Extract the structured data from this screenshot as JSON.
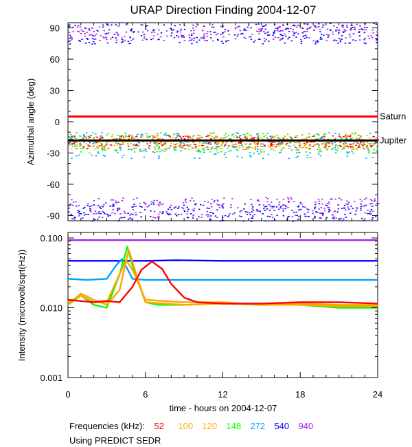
{
  "chart_data": [
    {
      "type": "scatter",
      "title": "URAP Direction Finding  2004-12-07",
      "xlabel": "",
      "ylabel": "Azimuthal angle (deg)",
      "xlim": [
        0,
        24
      ],
      "ylim": [
        -95,
        95
      ],
      "yticks": [
        "90",
        "60",
        "30",
        "0",
        "-30",
        "-60",
        "-90"
      ],
      "grid": false,
      "reference_lines": [
        {
          "label": "Saturn",
          "y": 5,
          "color": "#ff0000"
        },
        {
          "label": "Jupiter",
          "y": -18,
          "color": "#000000"
        }
      ],
      "clusters": [
        {
          "frequency": "540",
          "color": "#0000ff",
          "x_range": [
            0,
            24
          ],
          "y_range": [
            75,
            95
          ]
        },
        {
          "frequency": "940",
          "color": "#a020f0",
          "x_range": [
            0,
            24
          ],
          "y_range": [
            78,
            94
          ]
        },
        {
          "frequency": "540",
          "color": "#0000ff",
          "x_range": [
            0,
            24
          ],
          "y_range": [
            -95,
            -78
          ]
        },
        {
          "frequency": "940",
          "color": "#a020f0",
          "x_range": [
            0,
            24
          ],
          "y_range": [
            -92,
            -72
          ]
        },
        {
          "frequency": "148",
          "color": "#00ff00",
          "x_range": [
            0,
            24
          ],
          "y_range": [
            -30,
            -10
          ]
        },
        {
          "frequency": "120",
          "color": "#ffa500",
          "x_range": [
            0,
            24
          ],
          "y_range": [
            -26,
            -12
          ]
        },
        {
          "frequency": "100",
          "color": "#ffa500",
          "x_range": [
            0,
            24
          ],
          "y_range": [
            -26,
            -12
          ]
        },
        {
          "frequency": "52",
          "color": "#ff0000",
          "x_range": [
            0,
            24
          ],
          "y_range": [
            -24,
            -13
          ]
        },
        {
          "frequency": "272",
          "color": "#00a0ff",
          "x_range": [
            0,
            24
          ],
          "y_range": [
            -35,
            -10
          ]
        }
      ]
    },
    {
      "type": "line",
      "title": "",
      "xlabel": "time - hours on 2004-12-07",
      "ylabel": "Intensity (microvolt/sqrt(Hz))",
      "xlim": [
        0,
        24
      ],
      "ylim": [
        0.001,
        0.12
      ],
      "yscale": "log",
      "xticks": [
        "0",
        "6",
        "12",
        "18",
        "24"
      ],
      "yticks": [
        "0.100",
        "0.010",
        "0.001"
      ],
      "grid": false,
      "series": [
        {
          "name": "940",
          "color": "#a020f0",
          "x": [
            0,
            6,
            12,
            18,
            24
          ],
          "y": [
            0.093,
            0.093,
            0.093,
            0.093,
            0.093
          ]
        },
        {
          "name": "540",
          "color": "#0000ff",
          "x": [
            0,
            6,
            8.5,
            12,
            18,
            24
          ],
          "y": [
            0.047,
            0.047,
            0.048,
            0.047,
            0.047,
            0.047
          ]
        },
        {
          "name": "272",
          "color": "#00a0ff",
          "x": [
            0,
            1.5,
            3,
            3.8,
            4.2,
            5,
            6,
            12,
            18,
            24
          ],
          "y": [
            0.026,
            0.025,
            0.026,
            0.042,
            0.05,
            0.026,
            0.025,
            0.025,
            0.025,
            0.025
          ]
        },
        {
          "name": "148",
          "color": "#00ff00",
          "x": [
            0,
            1,
            2,
            3,
            4,
            4.6,
            5,
            6,
            7,
            9,
            12,
            15,
            18,
            21,
            24
          ],
          "y": [
            0.011,
            0.015,
            0.011,
            0.01,
            0.03,
            0.075,
            0.04,
            0.012,
            0.011,
            0.011,
            0.0115,
            0.011,
            0.011,
            0.01,
            0.01
          ]
        },
        {
          "name": "120",
          "color": "#ffa500",
          "x": [
            0,
            1,
            2,
            3,
            4,
            4.7,
            5.3,
            6,
            9,
            12,
            15,
            18,
            21,
            24
          ],
          "y": [
            0.011,
            0.016,
            0.013,
            0.011,
            0.018,
            0.068,
            0.03,
            0.012,
            0.011,
            0.0115,
            0.011,
            0.011,
            0.0105,
            0.0105
          ]
        },
        {
          "name": "100",
          "color": "#ffa500",
          "x": [
            0,
            1,
            2,
            3,
            4.5,
            5,
            6,
            9,
            12,
            15,
            18,
            21,
            24
          ],
          "y": [
            0.012,
            0.015,
            0.012,
            0.012,
            0.048,
            0.035,
            0.013,
            0.012,
            0.012,
            0.011,
            0.0115,
            0.011,
            0.011
          ]
        },
        {
          "name": "52",
          "color": "#ff0000",
          "x": [
            0,
            2,
            3,
            4,
            5,
            5.7,
            6.5,
            7.3,
            8,
            9,
            10,
            12,
            15,
            18,
            21,
            24
          ],
          "y": [
            0.013,
            0.012,
            0.0125,
            0.012,
            0.02,
            0.035,
            0.046,
            0.036,
            0.022,
            0.014,
            0.012,
            0.0115,
            0.0115,
            0.012,
            0.012,
            0.0115
          ]
        }
      ]
    }
  ],
  "footer": {
    "frequencies_label": "Frequencies (kHz):",
    "frequencies": [
      {
        "label": "52",
        "color": "#ff0000"
      },
      {
        "label": "100",
        "color": "#ffa500"
      },
      {
        "label": "120",
        "color": "#ffb000"
      },
      {
        "label": "148",
        "color": "#00ff00"
      },
      {
        "label": "272",
        "color": "#00a0ff"
      },
      {
        "label": "540",
        "color": "#0000ff"
      },
      {
        "label": "940",
        "color": "#a020f0"
      }
    ],
    "source_note": "Using PREDICT SEDR"
  }
}
